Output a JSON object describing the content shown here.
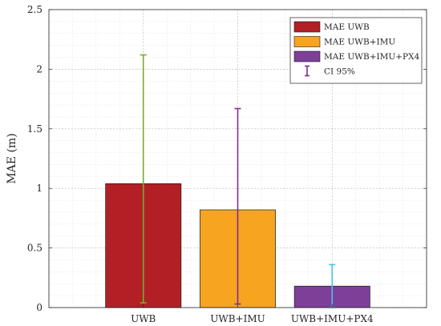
{
  "chart_data": {
    "type": "bar",
    "title": "",
    "xlabel": "",
    "ylabel": "MAE (m)",
    "categories": [
      "UWB",
      "UWB+IMU",
      "UWB+IMU+PX4"
    ],
    "yticks": [
      "0",
      "0.5",
      "1",
      "1.5",
      "2",
      "2.5"
    ],
    "ylim": [
      0,
      2.5
    ],
    "grid": true,
    "minor_grid": true,
    "legend_position": "top-right",
    "series": [
      {
        "name": "MAE UWB",
        "category": "UWB",
        "value": 1.04,
        "ci": [
          0.04,
          2.12
        ],
        "color": "#b22025",
        "ci_color": "#77ac30"
      },
      {
        "name": "MAE UWB+IMU",
        "category": "UWB+IMU",
        "value": 0.82,
        "ci": [
          0.03,
          1.67
        ],
        "color": "#f7a420",
        "ci_color": "#7e2f8e"
      },
      {
        "name": "MAE UWB+IMU+PX4",
        "category": "UWB+IMU+PX4",
        "value": 0.18,
        "ci": [
          0.0,
          0.36
        ],
        "color": "#7e3f98",
        "ci_color": "#4dbeee"
      }
    ],
    "legend": {
      "entries": [
        "MAE UWB",
        "MAE UWB+IMU",
        "MAE UWB+IMU+PX4",
        "CI 95%"
      ],
      "ci_symbol_color": "#7e2f8e"
    }
  }
}
